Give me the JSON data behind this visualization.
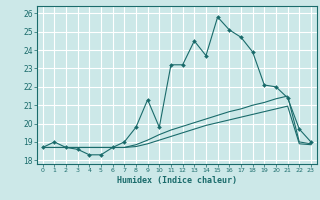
{
  "xlabel": "Humidex (Indice chaleur)",
  "bg_color": "#cce8e8",
  "line_color": "#1a6b6b",
  "grid_color": "#ffffff",
  "xlim": [
    -0.5,
    23.5
  ],
  "ylim": [
    17.8,
    26.4
  ],
  "xticks": [
    0,
    1,
    2,
    3,
    4,
    5,
    6,
    7,
    8,
    9,
    10,
    11,
    12,
    13,
    14,
    15,
    16,
    17,
    18,
    19,
    20,
    21,
    22,
    23
  ],
  "yticks": [
    18,
    19,
    20,
    21,
    22,
    23,
    24,
    25,
    26
  ],
  "line1_x": [
    0,
    1,
    2,
    3,
    4,
    5,
    6,
    7,
    8,
    9,
    10,
    11,
    12,
    13,
    14,
    15,
    16,
    17,
    18,
    19,
    20,
    21,
    22,
    23
  ],
  "line1_y": [
    18.7,
    19.0,
    18.7,
    18.6,
    18.3,
    18.3,
    18.7,
    19.0,
    19.8,
    21.3,
    19.8,
    23.2,
    23.2,
    24.5,
    23.7,
    25.8,
    25.1,
    24.7,
    23.9,
    22.1,
    22.0,
    21.4,
    19.7,
    19.0
  ],
  "line2_x": [
    0,
    1,
    2,
    3,
    4,
    5,
    6,
    7,
    8,
    9,
    10,
    11,
    12,
    13,
    14,
    15,
    16,
    17,
    18,
    19,
    20,
    21,
    22,
    23
  ],
  "line2_y": [
    18.7,
    18.7,
    18.7,
    18.7,
    18.7,
    18.7,
    18.7,
    18.7,
    18.85,
    19.1,
    19.4,
    19.65,
    19.85,
    20.05,
    20.25,
    20.45,
    20.65,
    20.8,
    21.0,
    21.15,
    21.35,
    21.5,
    19.0,
    18.9
  ],
  "line3_x": [
    0,
    1,
    2,
    3,
    4,
    5,
    6,
    7,
    8,
    9,
    10,
    11,
    12,
    13,
    14,
    15,
    16,
    17,
    18,
    19,
    20,
    21,
    22,
    23
  ],
  "line3_y": [
    18.7,
    18.7,
    18.7,
    18.7,
    18.7,
    18.7,
    18.7,
    18.7,
    18.75,
    18.9,
    19.1,
    19.3,
    19.5,
    19.7,
    19.9,
    20.05,
    20.2,
    20.35,
    20.5,
    20.65,
    20.8,
    20.95,
    18.9,
    18.85
  ]
}
